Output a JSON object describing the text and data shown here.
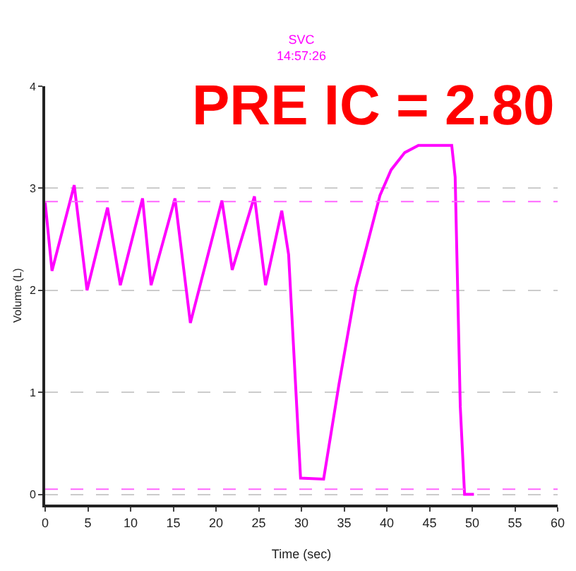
{
  "chart_data": {
    "type": "line",
    "title": "SVC",
    "subtitle": "14:57:26",
    "xlabel": "Time (sec)",
    "ylabel": "Volume (L)",
    "annotations": [
      "PRE IC = 2.80"
    ],
    "x": [
      0,
      0.8,
      3.4,
      4.9,
      7.3,
      8.8,
      11.4,
      12.4,
      15.2,
      17.0,
      20.7,
      21.9,
      24.5,
      25.8,
      27.7,
      28.5,
      29.9,
      32.6,
      34.4,
      36.4,
      39.2,
      40.5,
      42.1,
      43.7,
      47.6,
      48.0,
      48.6,
      49.1,
      50.2
    ],
    "series": [
      {
        "color": "#ff00ff",
        "values": [
          2.86,
          2.19,
          3.03,
          2.0,
          2.81,
          2.05,
          2.9,
          2.05,
          2.9,
          1.68,
          2.88,
          2.2,
          2.92,
          2.05,
          2.78,
          2.35,
          0.16,
          0.15,
          1.08,
          2.03,
          2.93,
          3.18,
          3.35,
          3.42,
          3.42,
          3.11,
          0.86,
          0.0,
          0.0
        ]
      }
    ],
    "ref_lines": [
      {
        "axis": "y",
        "value": 2.87,
        "color": "#ff66ff",
        "line_style": "dashed"
      },
      {
        "axis": "y",
        "value": 0.05,
        "color": "#ff66ff",
        "line_style": "dashed"
      }
    ],
    "xlim": [
      0,
      60
    ],
    "ylim": [
      -0.1,
      4
    ],
    "xticks": [
      0,
      5,
      10,
      15,
      20,
      25,
      30,
      35,
      40,
      45,
      50,
      55,
      60
    ],
    "yticks": [
      0,
      1,
      2,
      3,
      4
    ],
    "grid": "y",
    "marker": "none",
    "line_style": "solid"
  }
}
